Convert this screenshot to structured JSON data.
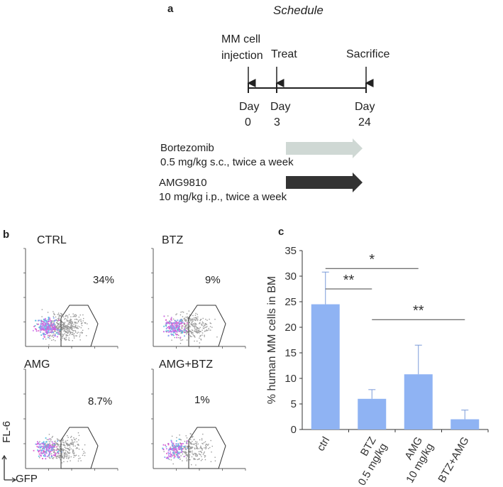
{
  "panel_a": {
    "letter": "a",
    "title": "Schedule",
    "events": [
      {
        "label_line1": "MM cell",
        "label_line2": "injection",
        "day_label": "Day",
        "day_value": "0"
      },
      {
        "label_line1": "Treat",
        "label_line2": "",
        "day_label": "Day",
        "day_value": "3"
      },
      {
        "label_line1": "Sacrifice",
        "label_line2": "",
        "day_label": "Day",
        "day_value": "24"
      }
    ],
    "treatments": [
      {
        "name": "Bortezomib",
        "dose": "0.5 mg/kg s.c., twice a week",
        "arrow_color": "#cfd8d4"
      },
      {
        "name": "AMG9810",
        "dose": "10 mg/kg i.p., twice a week",
        "arrow_color": "#333333"
      }
    ]
  },
  "panel_b": {
    "letter": "b",
    "plots": [
      {
        "title": "CTRL",
        "percent": "34%"
      },
      {
        "title": "BTZ",
        "percent": "9%"
      },
      {
        "title": "AMG",
        "percent": "8.7%"
      },
      {
        "title": "AMG+BTZ",
        "percent": "1%"
      }
    ],
    "y_axis_label": "FL-6",
    "x_axis_label": "GFP"
  },
  "chart_data": {
    "type": "bar",
    "letter": "c",
    "categories": [
      "ctrl",
      "BTZ 0.5 mg/kg",
      "AMG 10 mg/kg",
      "BTZ+AMG"
    ],
    "category_lines": [
      [
        "ctrl"
      ],
      [
        "BTZ",
        "0.5 mg/kg"
      ],
      [
        "AMG",
        "10 mg/kg"
      ],
      [
        "BTZ+AMG"
      ]
    ],
    "values": [
      24.5,
      6.0,
      10.8,
      2.0
    ],
    "errors": [
      6.3,
      1.8,
      5.7,
      1.8
    ],
    "ylabel": "% human MM cells in BM",
    "ylim": [
      0,
      35
    ],
    "yticks": [
      0,
      5,
      10,
      15,
      20,
      25,
      30,
      35
    ],
    "bar_color": "#8fb3f3",
    "significance": [
      {
        "from": 0,
        "to": 2,
        "label": "*",
        "level": 31.5
      },
      {
        "from": 0,
        "to": 1,
        "label": "**",
        "level": 27.5
      },
      {
        "from": 1,
        "to": 3,
        "label": "**",
        "level": 21.5
      }
    ]
  }
}
